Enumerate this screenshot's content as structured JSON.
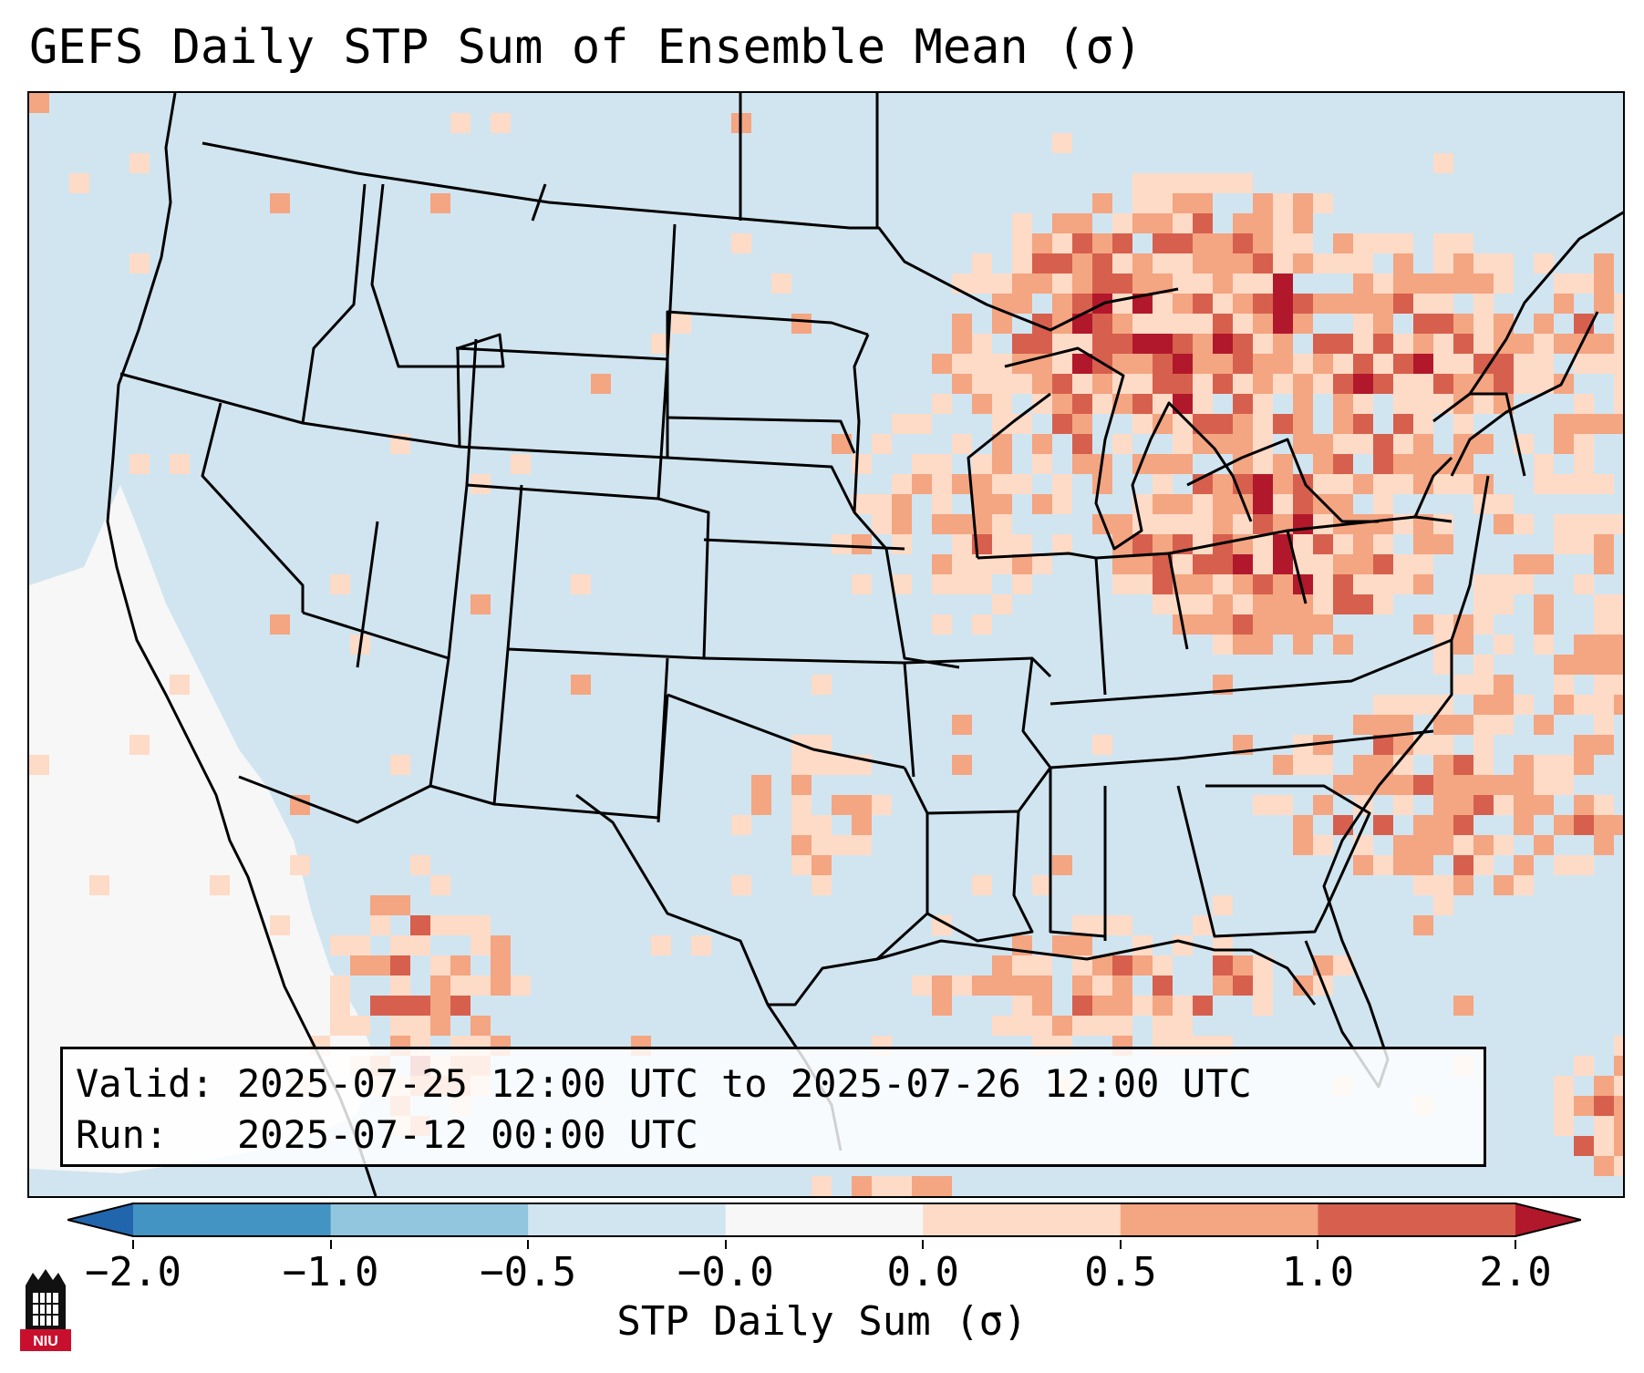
{
  "title": "GEFS Daily STP Sum of Ensemble Mean (σ)",
  "info": {
    "valid_label": "Valid:",
    "valid_value": "2025-07-25 12:00 UTC to 2025-07-26 12:00 UTC",
    "run_label": "Run:",
    "run_value": "2025-07-12 00:00 UTC"
  },
  "colorbar": {
    "label": "STP Daily Sum (σ)",
    "ticks": [
      "−2.0",
      "−1.0",
      "−0.5",
      "−0.0",
      "0.0",
      "0.5",
      "1.0",
      "2.0"
    ],
    "colors": [
      "#2166ac",
      "#4393c3",
      "#92c5de",
      "#d1e5f0",
      "#f7f7f7",
      "#fddbc7",
      "#f4a582",
      "#d6604d",
      "#b2182b"
    ],
    "extend": "both"
  },
  "map": {
    "region": "Continental United States",
    "background_color": "#d1e5f0",
    "no_data_color": "#ffffff"
  },
  "logo": {
    "text": "NIU",
    "color": "#c8102e"
  }
}
